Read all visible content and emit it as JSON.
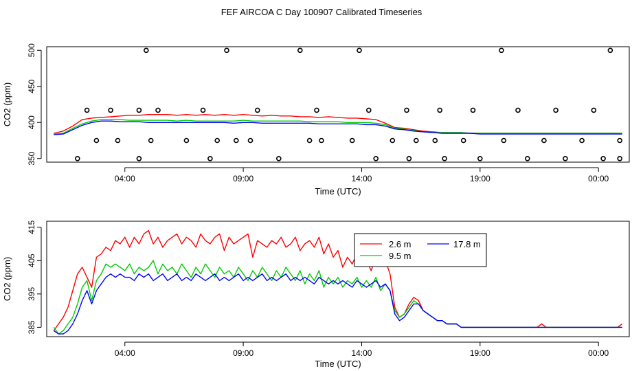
{
  "figure_title": "FEF AIRCOA C  Day 100907  Calibrated Timeseries",
  "colors": {
    "axis": "#000000",
    "red": "#ff0000",
    "green": "#00cc00",
    "blue": "#0000ff"
  },
  "chart_data": [
    {
      "type": "line",
      "title": "",
      "xlabel": "Time (UTC)",
      "ylabel": "CO2 (ppm)",
      "xlim": [
        -0.3,
        24.3
      ],
      "ylim": [
        345,
        505
      ],
      "xticks": [
        3,
        8,
        13,
        18,
        23
      ],
      "xtick_labels": [
        "04:00",
        "09:00",
        "14:00",
        "19:00",
        "00:00"
      ],
      "yticks": [
        350,
        400,
        450,
        500
      ],
      "ytick_labels": [
        "350",
        "400",
        "450",
        "500"
      ],
      "x": [
        0,
        0.4,
        0.8,
        1.2,
        1.6,
        2,
        2.4,
        2.8,
        3.2,
        3.6,
        4,
        4.4,
        4.8,
        5.2,
        5.6,
        6,
        6.4,
        6.8,
        7.2,
        7.6,
        8,
        8.4,
        8.8,
        9.2,
        9.6,
        10,
        10.4,
        10.8,
        11.2,
        11.6,
        12,
        12.4,
        12.8,
        13.2,
        13.6,
        14,
        14.4,
        14.8,
        15.2,
        15.6,
        16,
        16.4,
        16.8,
        17.2,
        17.6,
        18,
        18.4,
        18.8,
        19.2,
        19.6,
        20,
        20.4,
        20.8,
        21.2,
        21.6,
        22,
        22.4,
        22.8,
        23.2,
        23.6,
        24
      ],
      "series": [
        {
          "name": "2.6 m",
          "color": "#ff0000",
          "values": [
            385,
            388,
            395,
            404,
            406,
            407,
            408,
            409,
            410,
            410,
            411,
            411,
            411,
            410,
            411,
            410,
            411,
            410,
            411,
            410,
            411,
            410,
            409,
            410,
            409,
            409,
            408,
            408,
            407,
            408,
            407,
            406,
            406,
            405,
            404,
            399,
            393,
            392,
            390,
            388,
            387,
            386,
            386,
            386,
            385,
            385,
            385,
            385,
            385,
            385,
            385,
            385,
            385,
            385,
            385,
            385,
            385,
            385,
            385,
            385,
            385
          ]
        },
        {
          "name": "9.5 m",
          "color": "#00cc00",
          "values": [
            384,
            385,
            392,
            398,
            402,
            404,
            404,
            404,
            403,
            403,
            403,
            403,
            403,
            402,
            403,
            402,
            402,
            402,
            402,
            402,
            403,
            402,
            402,
            402,
            402,
            402,
            402,
            401,
            401,
            401,
            401,
            400,
            400,
            400,
            399,
            397,
            392,
            391,
            389,
            387,
            386,
            386,
            386,
            386,
            385,
            385,
            385,
            385,
            385,
            385,
            385,
            385,
            385,
            385,
            385,
            385,
            385,
            385,
            385,
            385,
            385
          ]
        },
        {
          "name": "17.8 m",
          "color": "#0000ff",
          "values": [
            383,
            384,
            390,
            396,
            400,
            402,
            402,
            401,
            401,
            401,
            400,
            400,
            400,
            400,
            400,
            400,
            400,
            400,
            400,
            399,
            400,
            400,
            399,
            399,
            399,
            399,
            399,
            399,
            398,
            398,
            398,
            398,
            398,
            397,
            397,
            395,
            391,
            390,
            388,
            387,
            386,
            385,
            385,
            385,
            385,
            384,
            384,
            384,
            384,
            384,
            384,
            384,
            384,
            384,
            384,
            384,
            384,
            384,
            384,
            384,
            384
          ]
        }
      ],
      "markers": {
        "symbol": "open-circle",
        "x": [
          1,
          3.6,
          6.6,
          9.5,
          13.6,
          15,
          16.5,
          18,
          20,
          21.6,
          23.2,
          23.9,
          1.8,
          2.7,
          4.1,
          5.6,
          6.9,
          7.7,
          8.3,
          10.8,
          11.3,
          12.6,
          14.3,
          15.3,
          16.1,
          17.3,
          19,
          20.7,
          22.3,
          23.9,
          1.4,
          2.4,
          3.6,
          4.4,
          6.3,
          8.6,
          11.1,
          13.3,
          14.9,
          16.3,
          17.7,
          19.6,
          21.2,
          22.8,
          3.9,
          7.3,
          10.4,
          12.9,
          18.9,
          23.5
        ],
        "y": [
          350,
          350,
          350,
          350,
          350,
          350,
          350,
          350,
          350,
          350,
          350,
          350,
          375,
          375,
          375,
          375,
          375,
          375,
          375,
          375,
          375,
          375,
          375,
          375,
          375,
          375,
          375,
          375,
          375,
          375,
          417,
          417,
          417,
          417,
          417,
          417,
          417,
          417,
          417,
          417,
          417,
          417,
          417,
          417,
          500,
          500,
          500,
          500,
          500,
          500
        ]
      }
    },
    {
      "type": "line",
      "title": "",
      "xlabel": "Time (UTC)",
      "ylabel": "CO2 (ppm)",
      "xlim": [
        -0.3,
        24.3
      ],
      "ylim": [
        382.2,
        416.8
      ],
      "xticks": [
        3,
        8,
        13,
        18,
        23
      ],
      "xtick_labels": [
        "04:00",
        "09:00",
        "14:00",
        "19:00",
        "00:00"
      ],
      "yticks": [
        385,
        395,
        405,
        415
      ],
      "ytick_labels": [
        "385",
        "395",
        "405",
        "415"
      ],
      "legend": {
        "position": "top-right",
        "entries": [
          "2.6 m",
          "9.5 m",
          "17.8 m"
        ]
      },
      "x": [
        0,
        0.2,
        0.4,
        0.6,
        0.8,
        1,
        1.2,
        1.4,
        1.6,
        1.8,
        2,
        2.2,
        2.4,
        2.6,
        2.8,
        3,
        3.2,
        3.4,
        3.6,
        3.8,
        4,
        4.2,
        4.4,
        4.6,
        4.8,
        5,
        5.2,
        5.4,
        5.6,
        5.8,
        6,
        6.2,
        6.4,
        6.6,
        6.8,
        7,
        7.2,
        7.4,
        7.6,
        7.8,
        8,
        8.2,
        8.4,
        8.6,
        8.8,
        9,
        9.2,
        9.4,
        9.6,
        9.8,
        10,
        10.2,
        10.4,
        10.6,
        10.8,
        11,
        11.2,
        11.4,
        11.6,
        11.8,
        12,
        12.2,
        12.4,
        12.6,
        12.8,
        13,
        13.2,
        13.4,
        13.6,
        13.8,
        14,
        14.2,
        14.4,
        14.6,
        14.8,
        15,
        15.2,
        15.4,
        15.6,
        15.8,
        16,
        16.2,
        16.4,
        16.6,
        16.8,
        17,
        17.2,
        17.4,
        17.6,
        17.8,
        18,
        18.2,
        18.4,
        18.6,
        18.8,
        19,
        19.2,
        19.4,
        19.6,
        19.8,
        20,
        20.2,
        20.4,
        20.6,
        20.8,
        21,
        21.2,
        21.4,
        21.6,
        21.8,
        22,
        22.2,
        22.4,
        22.6,
        22.8,
        23,
        23.2,
        23.4,
        23.6,
        23.8,
        24
      ],
      "series": [
        {
          "name": "2.6 m",
          "color": "#ff0000",
          "values": [
            384,
            386,
            388,
            391,
            396,
            401,
            403,
            400,
            397,
            406,
            407,
            409,
            408,
            411,
            410,
            412,
            409,
            412,
            410,
            413,
            414,
            410,
            412,
            409,
            411,
            412,
            413,
            410,
            412,
            411,
            409,
            413,
            411,
            410,
            412,
            413,
            408,
            412,
            410,
            411,
            412,
            413,
            406,
            411,
            410,
            409,
            411,
            410,
            412,
            409,
            410,
            412,
            408,
            410,
            411,
            409,
            412,
            407,
            410,
            406,
            408,
            403,
            406,
            404,
            407,
            404,
            405,
            402,
            406,
            404,
            405,
            401,
            391,
            388,
            389,
            392,
            394,
            393,
            390,
            389,
            388,
            387,
            387,
            386,
            386,
            386,
            385,
            385,
            385,
            385,
            385,
            385,
            385,
            385,
            385,
            385,
            385,
            385,
            385,
            385,
            385,
            385,
            385,
            386,
            385,
            385,
            385,
            385,
            385,
            385,
            385,
            385,
            385,
            385,
            385,
            385,
            385,
            385,
            385,
            385,
            386
          ]
        },
        {
          "name": "9.5 m",
          "color": "#00cc00",
          "values": [
            385,
            383,
            384,
            386,
            388,
            392,
            397,
            399,
            393,
            399,
            401,
            404,
            403,
            404,
            403,
            402,
            404,
            401,
            403,
            402,
            403,
            405,
            401,
            404,
            402,
            403,
            401,
            404,
            402,
            400,
            403,
            401,
            404,
            402,
            400,
            403,
            401,
            402,
            400,
            403,
            401,
            399,
            402,
            400,
            403,
            401,
            399,
            402,
            400,
            403,
            401,
            399,
            402,
            398,
            401,
            399,
            402,
            397,
            400,
            398,
            400,
            397,
            399,
            398,
            400,
            397,
            399,
            397,
            400,
            396,
            398,
            396,
            390,
            388,
            389,
            391,
            393,
            392,
            390,
            389,
            388,
            387,
            387,
            386,
            386,
            386,
            385,
            385,
            385,
            385,
            385,
            385,
            385,
            385,
            385,
            385,
            385,
            385,
            385,
            385,
            385,
            385,
            385,
            385,
            385,
            385,
            385,
            385,
            385,
            385,
            385,
            385,
            385,
            385,
            385,
            385,
            385,
            385,
            385,
            385,
            385
          ]
        },
        {
          "name": "17.8 m",
          "color": "#0000ff",
          "values": [
            384,
            383,
            383,
            384,
            386,
            389,
            393,
            396,
            392,
            396,
            398,
            400,
            401,
            400,
            401,
            400,
            400,
            399,
            401,
            400,
            401,
            399,
            400,
            401,
            399,
            400,
            401,
            399,
            400,
            399,
            401,
            400,
            399,
            400,
            401,
            399,
            400,
            399,
            400,
            401,
            399,
            400,
            399,
            400,
            401,
            399,
            400,
            399,
            400,
            401,
            399,
            400,
            399,
            400,
            399,
            398,
            400,
            399,
            398,
            399,
            398,
            399,
            398,
            397,
            399,
            398,
            397,
            398,
            399,
            397,
            398,
            396,
            389,
            387,
            388,
            390,
            392,
            392,
            390,
            389,
            388,
            387,
            387,
            386,
            386,
            386,
            385,
            385,
            385,
            385,
            385,
            385,
            385,
            385,
            385,
            385,
            385,
            385,
            385,
            385,
            385,
            385,
            385,
            385,
            385,
            385,
            385,
            385,
            385,
            385,
            385,
            385,
            385,
            385,
            385,
            385,
            385,
            385,
            385,
            385,
            385
          ]
        }
      ]
    }
  ]
}
